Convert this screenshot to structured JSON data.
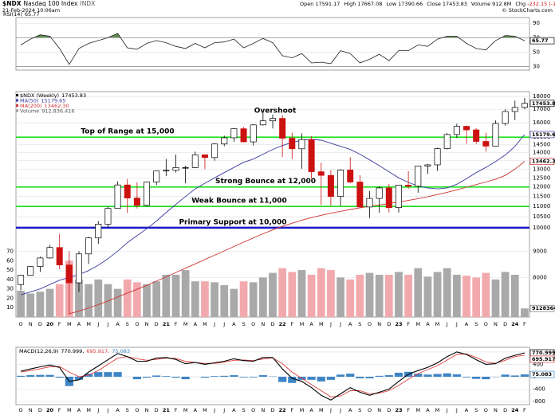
{
  "header": {
    "symbol": "$NDX",
    "name": "Nasdaq 100 Index",
    "exchange": "INDX",
    "date": "21-Feb-2024 10:06am",
    "quote": [
      {
        "label": "Open",
        "value": "17591.17"
      },
      {
        "label": "High",
        "value": "17667.08"
      },
      {
        "label": "Low",
        "value": "17390.66"
      },
      {
        "label": "Close",
        "value": "17453.83"
      },
      {
        "label": "Volume",
        "value": "912.8M"
      },
      {
        "label": "Chg",
        "value": "-232.15 (-1.31%)"
      }
    ],
    "credit": "© StockCharts.com"
  },
  "chart_data": [
    {
      "type": "line",
      "title": "RSI(14)",
      "legend_label": "65.77",
      "axis_label": "65.77",
      "color": "#222222",
      "fill_color": "#5f8f4f",
      "values": [
        60,
        68,
        74,
        72,
        55,
        33,
        55,
        62,
        66,
        70,
        76,
        56,
        54,
        62,
        66,
        63,
        58,
        55,
        62,
        56,
        63,
        64,
        68,
        56,
        62,
        69,
        63,
        45,
        42,
        48,
        35,
        36,
        34,
        52,
        48,
        35,
        40,
        47,
        38,
        52,
        52,
        60,
        58,
        68,
        72,
        72,
        62,
        55,
        53,
        66,
        73,
        72,
        65.77
      ],
      "overbought": 70,
      "oversold": 30,
      "ylim": [
        25,
        98
      ],
      "yticks": [
        30,
        50,
        70,
        90
      ],
      "grid": true
    },
    {
      "type": "candlestick",
      "log_scale": true,
      "grid": true,
      "categories": [
        "O",
        "N",
        "D",
        "20",
        "F",
        "M",
        "A",
        "M",
        "J",
        "J",
        "A",
        "S",
        "O",
        "N",
        "D",
        "21",
        "F",
        "M",
        "A",
        "M",
        "J",
        "J",
        "A",
        "S",
        "O",
        "N",
        "D",
        "22",
        "F",
        "M",
        "A",
        "M",
        "J",
        "J",
        "A",
        "S",
        "O",
        "N",
        "D",
        "23",
        "F",
        "M",
        "A",
        "M",
        "J",
        "J",
        "A",
        "S",
        "O",
        "N",
        "D",
        "24",
        "F"
      ],
      "ylim": [
        6700,
        18400
      ],
      "yticks": [
        8000,
        9000,
        10000,
        10500,
        11000,
        11500,
        12000,
        12500,
        13000,
        13500,
        14000,
        14500,
        15000,
        16000,
        17000,
        18000
      ],
      "series": [
        {
          "name": "$NDX (Weekly)",
          "legend_label": "17453.83",
          "axis_label": "17453.83",
          "color": "#000000",
          "up_color": "#000000",
          "down_color": "#cc1111",
          "open": [
            7750,
            8080,
            8400,
            8730,
            9150,
            8460,
            7810,
            8890,
            9550,
            10160,
            10900,
            12110,
            11420,
            11050,
            12270,
            12890,
            12930,
            13090,
            13090,
            13860,
            13690,
            14550,
            14960,
            15580,
            14690,
            15850,
            16140,
            16320,
            14930,
            14240,
            14840,
            12850,
            12640,
            11500,
            12950,
            12270,
            10970,
            11400,
            11950,
            10940,
            12100,
            12040,
            13180,
            13250,
            14250,
            15180,
            15750,
            15500,
            14720,
            14410,
            15950,
            16830,
            17140
          ],
          "high": [
            8100,
            8420,
            8780,
            9260,
            9720,
            9000,
            9000,
            9600,
            10300,
            11000,
            12300,
            12440,
            12250,
            12290,
            12900,
            13600,
            13880,
            13200,
            14060,
            13900,
            14600,
            15100,
            15600,
            15700,
            15900,
            16760,
            16600,
            16570,
            15300,
            15270,
            15060,
            13380,
            12940,
            12990,
            13720,
            12650,
            11780,
            12040,
            12170,
            12100,
            12880,
            13200,
            13300,
            14300,
            15280,
            15930,
            15800,
            15620,
            15300,
            16170,
            17000,
            17660,
            17870
          ],
          "low": [
            7550,
            8070,
            8200,
            8700,
            8300,
            6770,
            7490,
            8500,
            9300,
            10000,
            10900,
            10680,
            10900,
            11000,
            12100,
            12600,
            12800,
            12200,
            13050,
            13000,
            13500,
            14400,
            14700,
            14650,
            14450,
            15800,
            15600,
            13720,
            13600,
            13020,
            12460,
            11070,
            11040,
            11030,
            12200,
            10950,
            10440,
            10690,
            10700,
            10700,
            11900,
            11700,
            12720,
            12900,
            14200,
            14950,
            14560,
            14550,
            14060,
            14400,
            15800,
            16190,
            17000
          ],
          "close": [
            8080,
            8400,
            8730,
            9150,
            8460,
            7810,
            8890,
            9550,
            10160,
            10900,
            12110,
            11420,
            11050,
            12270,
            12890,
            12930,
            13090,
            13090,
            13860,
            13690,
            14550,
            14960,
            15580,
            14690,
            15850,
            16140,
            16320,
            14930,
            14240,
            14840,
            12850,
            12640,
            11500,
            12950,
            12270,
            10970,
            11400,
            11950,
            10940,
            12100,
            12040,
            13180,
            13250,
            14250,
            15180,
            15750,
            15500,
            14720,
            14410,
            15950,
            16830,
            17140,
            17453.83
          ]
        },
        {
          "name": "MA(50)",
          "legend_label": "15179.65",
          "axis_label": "15179.65",
          "color": "#3b3ba0",
          "values": [
            7400,
            7500,
            7600,
            7750,
            7900,
            8000,
            8100,
            8250,
            8450,
            8700,
            9000,
            9350,
            9650,
            9950,
            10300,
            10700,
            11100,
            11500,
            11900,
            12200,
            12500,
            12800,
            13100,
            13400,
            13600,
            13900,
            14200,
            14450,
            14650,
            14800,
            14850,
            14800,
            14600,
            14400,
            14200,
            13900,
            13550,
            13200,
            12850,
            12500,
            12250,
            12050,
            11950,
            11900,
            11950,
            12150,
            12450,
            12800,
            13100,
            13450,
            13850,
            14400,
            15179.65
          ]
        },
        {
          "name": "MA(200)",
          "legend_label": "13462.30",
          "axis_label": "13462.30",
          "color": "#cc3333",
          "values": [
            null,
            null,
            null,
            null,
            null,
            6800,
            6880,
            6980,
            7080,
            7200,
            7330,
            7460,
            7590,
            7720,
            7870,
            8020,
            8180,
            8340,
            8500,
            8670,
            8840,
            9010,
            9190,
            9370,
            9550,
            9730,
            9900,
            10060,
            10200,
            10340,
            10460,
            10570,
            10670,
            10760,
            10850,
            10930,
            11000,
            11070,
            11140,
            11220,
            11300,
            11390,
            11490,
            11600,
            11720,
            11850,
            11990,
            12130,
            12270,
            12420,
            12640,
            13000,
            13462.3
          ]
        }
      ],
      "volume": {
        "name": "Volume",
        "legend_label": "912,836,416",
        "axis_label": "912836416",
        "color": "#999999",
        "up_color": "#a9a9a9",
        "down_color": "#f2a9ad",
        "values": [
          2800000000,
          2500000000,
          2700000000,
          3000000000,
          3500000000,
          6000000000,
          4000000000,
          3500000000,
          4000000000,
          3500000000,
          3000000000,
          4000000000,
          3700000000,
          3500000000,
          3800000000,
          4500000000,
          4500000000,
          5000000000,
          3800000000,
          3800000000,
          3700000000,
          3400000000,
          3000000000,
          3800000000,
          3700000000,
          4200000000,
          4700000000,
          5200000000,
          4800000000,
          5000000000,
          4500000000,
          5200000000,
          5000000000,
          4200000000,
          4000000000,
          4500000000,
          4700000000,
          4500000000,
          4500000000,
          4800000000,
          4500000000,
          5200000000,
          4300000000,
          4800000000,
          5200000000,
          4500000000,
          4400000000,
          4200000000,
          4700000000,
          4000000000,
          4800000000,
          4500000000,
          912836416
        ],
        "ylim": [
          0,
          24000000000
        ],
        "yticks": [
          {
            "value": 1000000000,
            "label": "10"
          },
          {
            "value": 2000000000,
            "label": "20"
          },
          {
            "value": 3000000000,
            "label": "30"
          },
          {
            "value": 4000000000,
            "label": "40"
          },
          {
            "value": 5000000000,
            "label": "50"
          },
          {
            "value": 6000000000,
            "label": "60"
          },
          {
            "value": 7000000000,
            "label": "70"
          }
        ]
      },
      "levels": [
        {
          "value": 15000,
          "label": "Top of Range at 15,000",
          "color": "#22e022",
          "text_color": "#1fae1f"
        },
        {
          "value": 12000,
          "label": "Strong Bounce at 12,000",
          "color": "#22e022",
          "text_color": "#1fae1f"
        },
        {
          "value": 11000,
          "label": "Weak Bounce at 11,000",
          "color": "#22e022",
          "text_color": "#1fae1f"
        },
        {
          "value": 10000,
          "label": "Primary Support at 10,000",
          "color": "#1a1ac8",
          "text_color": "#1a1ac8"
        }
      ],
      "annotations": [
        {
          "text": "Overshoot",
          "color": "#e03030"
        }
      ]
    },
    {
      "type": "macd",
      "ylim": [
        -900,
        950
      ],
      "yticks": [
        -800,
        -400,
        0,
        400,
        800
      ],
      "grid": true,
      "series": [
        {
          "name": "MACD(12,26,9)",
          "legend_label": "770.999,",
          "axis_label": "770.999",
          "color": "#000000",
          "values": [
            180,
            250,
            320,
            380,
            300,
            -150,
            -100,
            150,
            350,
            550,
            750,
            650,
            500,
            500,
            600,
            620,
            560,
            420,
            460,
            400,
            450,
            500,
            580,
            520,
            500,
            620,
            620,
            250,
            -50,
            -150,
            -350,
            -600,
            -750,
            -550,
            -350,
            -500,
            -600,
            -500,
            -400,
            -150,
            80,
            200,
            300,
            450,
            650,
            800,
            720,
            550,
            400,
            420,
            600,
            690,
            770.999
          ]
        },
        {
          "legend_label": "695.917,",
          "axis_label": "695.917",
          "color": "#e04040",
          "values": [
            150,
            200,
            260,
            320,
            330,
            150,
            0,
            50,
            200,
            400,
            600,
            650,
            580,
            530,
            560,
            600,
            590,
            500,
            460,
            430,
            430,
            470,
            530,
            540,
            520,
            570,
            610,
            420,
            150,
            -50,
            -250,
            -450,
            -650,
            -620,
            -450,
            -450,
            -550,
            -530,
            -450,
            -280,
            -80,
            100,
            230,
            360,
            540,
            720,
            740,
            620,
            480,
            430,
            530,
            650,
            695.917
          ]
        },
        {
          "legend_label": "75.083",
          "axis_label": "75.083",
          "color": "#3d85c6",
          "values": [
            30,
            50,
            60,
            60,
            -30,
            -300,
            -100,
            100,
            150,
            150,
            150,
            0,
            -80,
            -30,
            40,
            20,
            -30,
            -80,
            0,
            -30,
            20,
            30,
            50,
            -20,
            -20,
            50,
            10,
            -170,
            -200,
            -100,
            -100,
            -150,
            -100,
            70,
            100,
            -50,
            -50,
            30,
            50,
            130,
            160,
            100,
            70,
            90,
            110,
            80,
            -20,
            -70,
            -80,
            -10,
            70,
            40,
            75.083
          ]
        }
      ]
    }
  ]
}
